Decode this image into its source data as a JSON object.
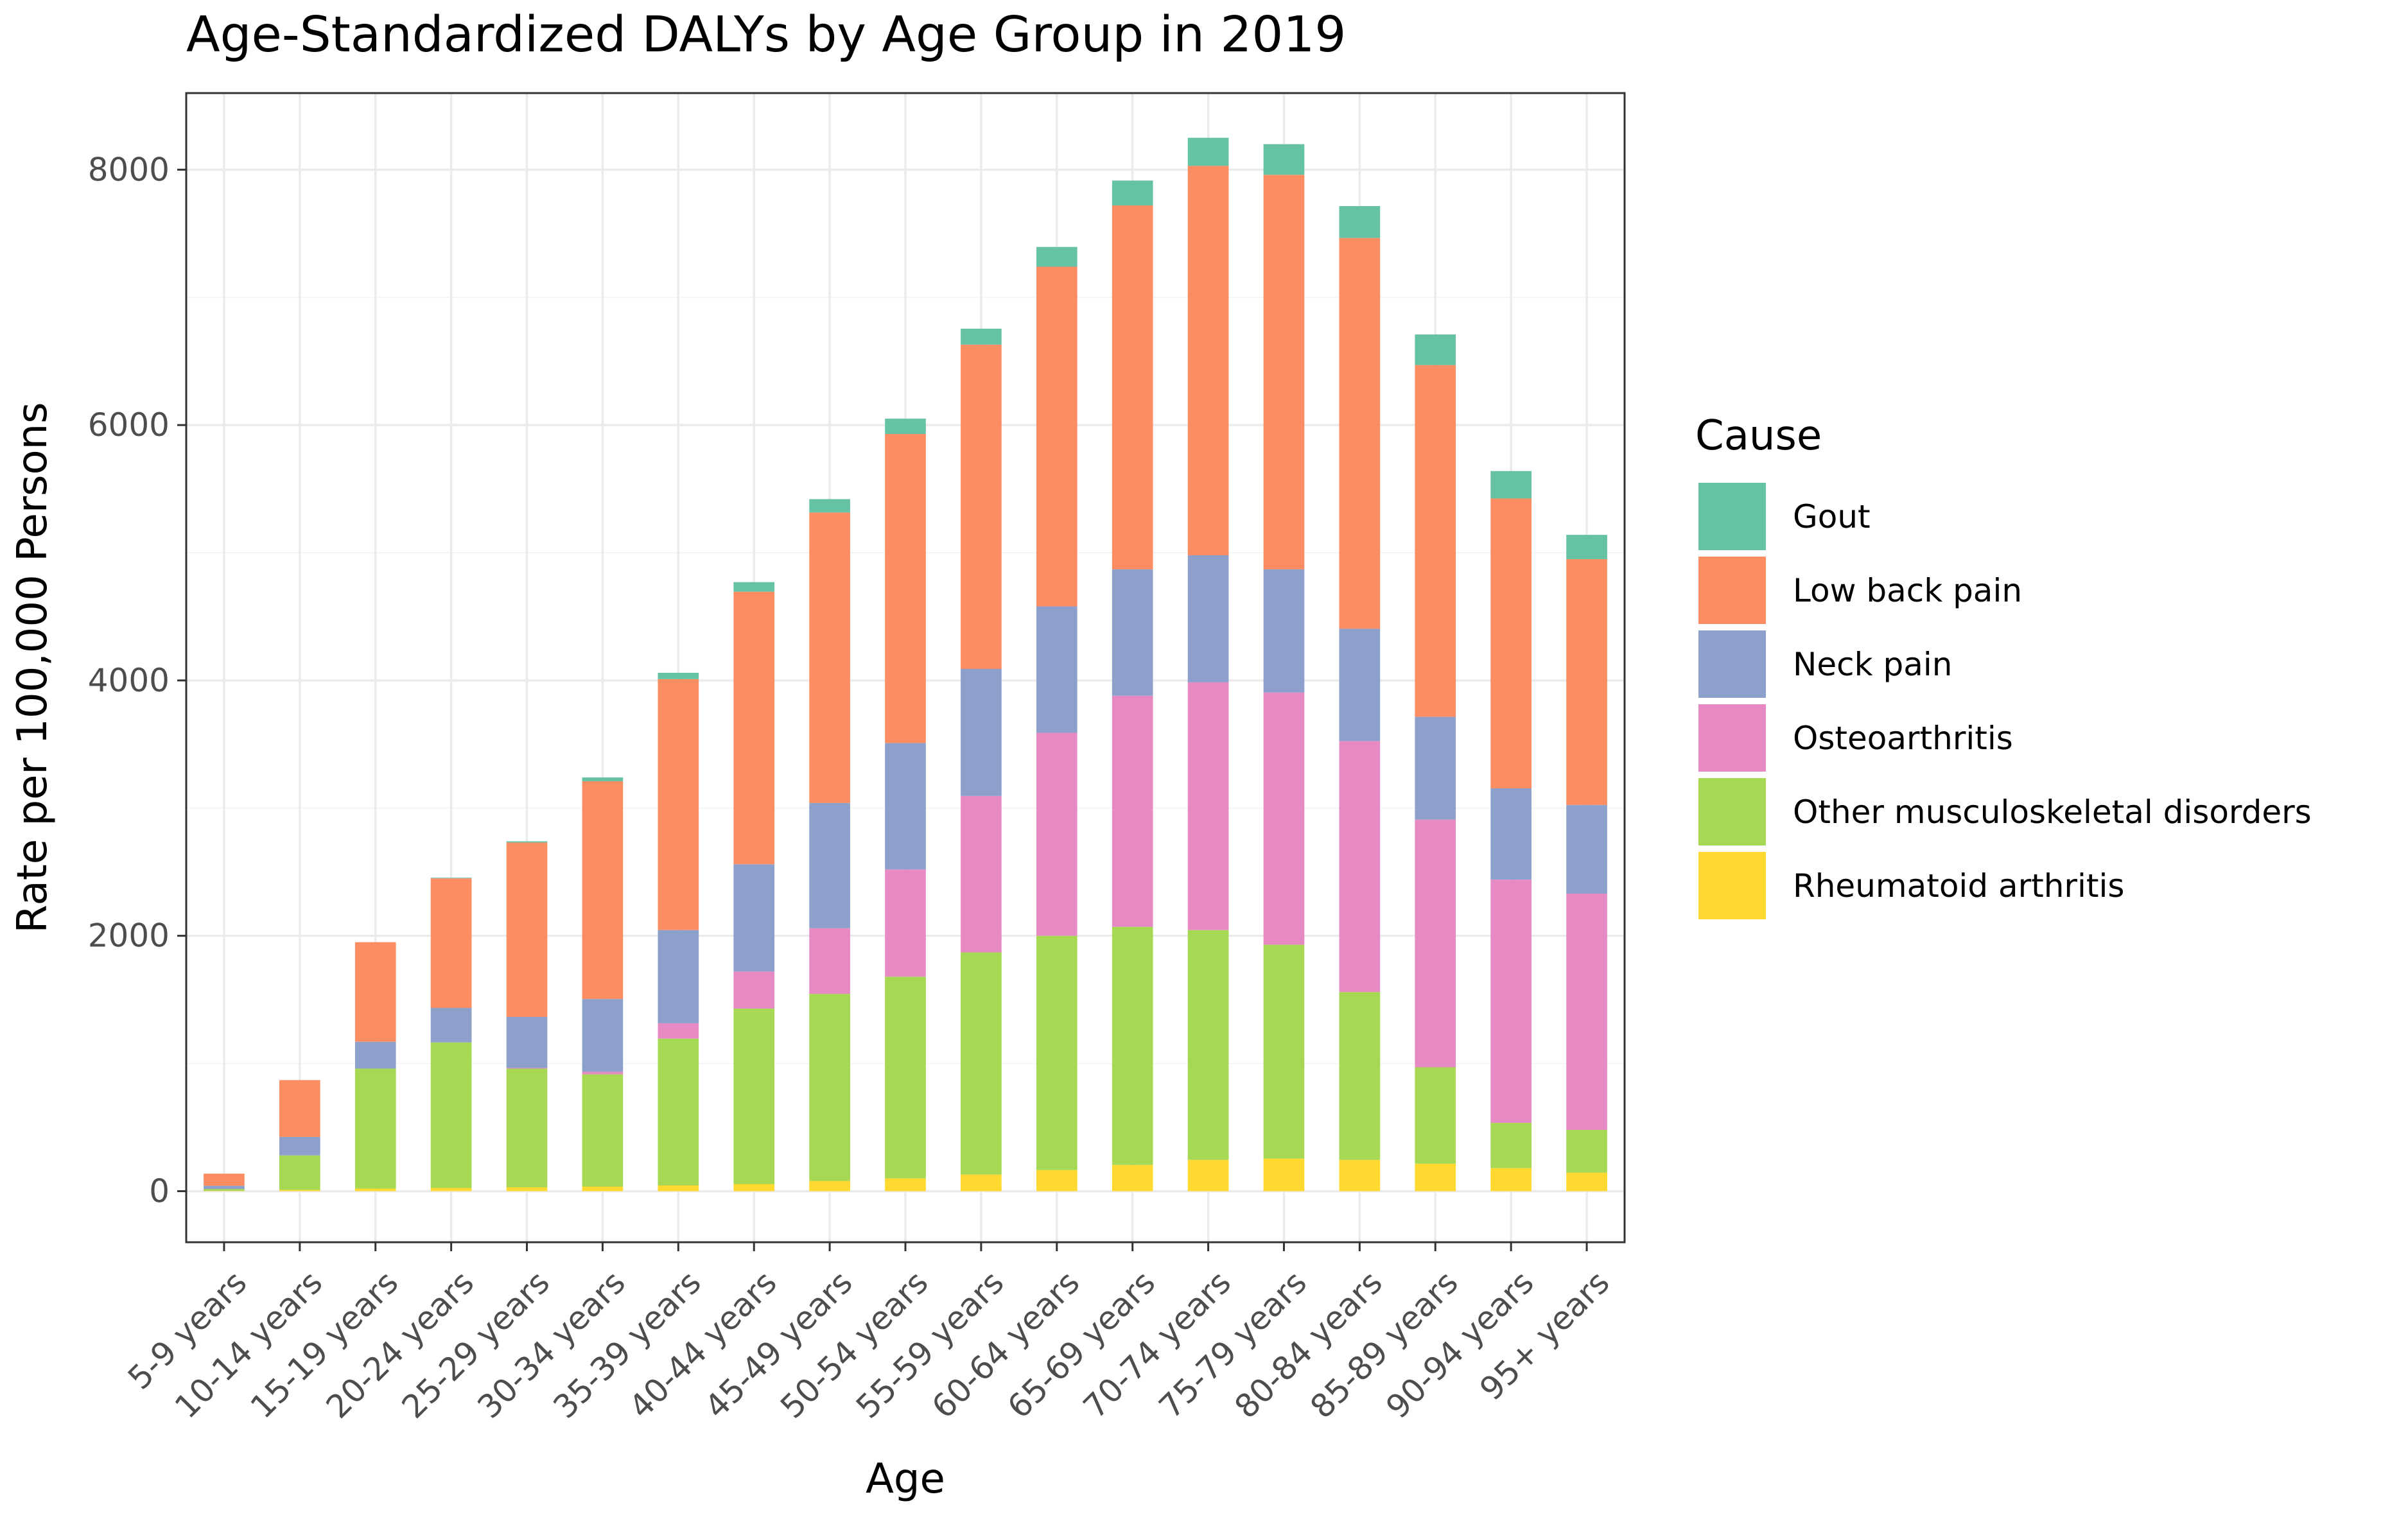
{
  "chart_data": {
    "type": "bar",
    "stacked": true,
    "title": "Age-Standardized DALYs by Age Group in 2019",
    "xlabel": "Age",
    "ylabel": "Rate per 100,000 Persons",
    "ylim": [
      -400,
      8600
    ],
    "yticks": [
      0,
      2000,
      4000,
      6000,
      8000
    ],
    "ytick_labels": [
      "0",
      "2000",
      "4000",
      "6000",
      "8000"
    ],
    "grid": true,
    "legend": {
      "title": "Cause",
      "position": "right"
    },
    "categories": [
      "5-9 years",
      "10-14 years",
      "15-19 years",
      "20-24 years",
      "25-29 years",
      "30-34 years",
      "35-39 years",
      "40-44 years",
      "45-49 years",
      "50-54 years",
      "55-59 years",
      "60-64 years",
      "65-69 years",
      "70-74 years",
      "75-79 years",
      "80-84 years",
      "85-89 years",
      "90-94 years",
      "95+ years"
    ],
    "series": [
      {
        "name": "Rheumatoid arthritis",
        "color": "#FFD92F",
        "values": [
          2,
          10,
          20,
          25,
          30,
          35,
          45,
          55,
          80,
          100,
          130,
          165,
          205,
          245,
          255,
          245,
          215,
          180,
          145
        ]
      },
      {
        "name": "Other musculoskeletal disorders",
        "color": "#A6D854",
        "values": [
          15,
          270,
          940,
          1140,
          930,
          880,
          1150,
          1375,
          1465,
          1580,
          1740,
          1835,
          1865,
          1800,
          1675,
          1315,
          755,
          355,
          335
        ]
      },
      {
        "name": "Osteoarthritis",
        "color": "#E78AC3",
        "values": [
          0,
          0,
          0,
          0,
          5,
          20,
          120,
          290,
          515,
          840,
          1225,
          1590,
          1810,
          1940,
          1975,
          1965,
          1940,
          1905,
          1850
        ]
      },
      {
        "name": "Neck pain",
        "color": "#8DA0CB",
        "values": [
          25,
          145,
          210,
          270,
          400,
          570,
          730,
          840,
          980,
          990,
          995,
          990,
          990,
          995,
          965,
          880,
          805,
          715,
          695
        ]
      },
      {
        "name": "Low back pain",
        "color": "#FC8D62",
        "values": [
          95,
          445,
          780,
          1015,
          1365,
          1705,
          1965,
          2135,
          2275,
          2420,
          2540,
          2660,
          2850,
          3050,
          3090,
          3060,
          2755,
          2270,
          1925
        ]
      },
      {
        "name": "Gout",
        "color": "#66C2A5",
        "values": [
          0,
          0,
          0,
          5,
          10,
          30,
          50,
          75,
          105,
          120,
          125,
          155,
          195,
          220,
          240,
          250,
          240,
          215,
          190
        ]
      }
    ],
    "colors": {
      "panel_border": "#333333",
      "grid_major": "#ebebeb",
      "grid_minor": "#f5f5f5"
    }
  }
}
